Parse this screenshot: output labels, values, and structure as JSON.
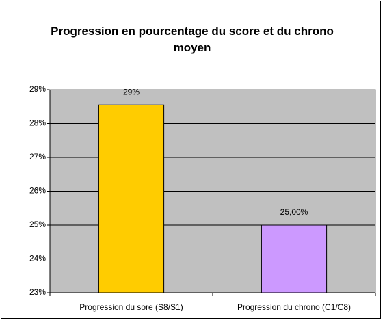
{
  "chart_data": {
    "type": "bar",
    "title": "Progression en pourcentage du score et du chrono moyen",
    "categories": [
      "Progression du sore (S8/S1)",
      "Progression du chrono (C1/C8)"
    ],
    "values": [
      28.55,
      25
    ],
    "value_labels": [
      "29%",
      "25,00%"
    ],
    "colors": [
      "#ffcc00",
      "#cc99ff"
    ],
    "ylim": [
      23,
      29
    ],
    "yticks": [
      {
        "value": 23,
        "label": "23%"
      },
      {
        "value": 24,
        "label": "24%"
      },
      {
        "value": 25,
        "label": "25%"
      },
      {
        "value": 26,
        "label": "26%"
      },
      {
        "value": 27,
        "label": "27%"
      },
      {
        "value": 28,
        "label": "28%"
      },
      {
        "value": 29,
        "label": "29%"
      }
    ],
    "grid": true
  }
}
